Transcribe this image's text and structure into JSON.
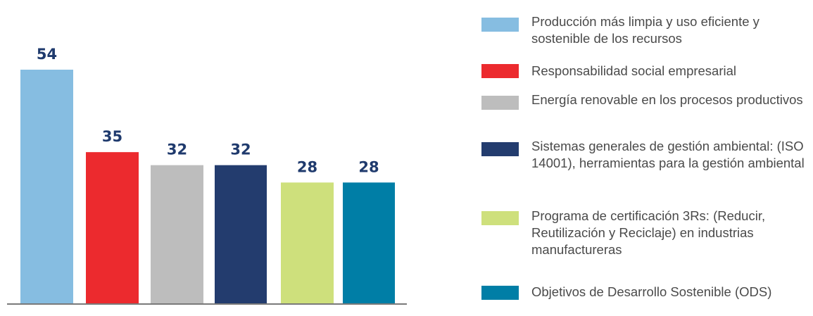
{
  "chart_data": {
    "type": "bar",
    "categories": [
      "Producción más limpia y uso eficiente y sostenible de los recursos",
      "Responsabilidad social empresarial",
      "Energía renovable en los procesos productivos",
      "Sistemas generales de gestión ambiental: (ISO 14001), herramientas para la gestión ambiental",
      "Programa de certificación 3Rs: (Reducir, Reutilización y Reciclaje) en industrias manufactureras",
      "Objetivos de Desarrollo Sostenible (ODS)"
    ],
    "values": [
      54,
      35,
      32,
      32,
      28,
      28
    ],
    "colors": [
      "#86bde1",
      "#ec2a2e",
      "#bdbdbd",
      "#233c6e",
      "#cee07c",
      "#007ea6"
    ],
    "value_labels": [
      "54",
      "35",
      "32",
      "32",
      "28",
      "28"
    ],
    "ylim": [
      0,
      60
    ],
    "grid": false,
    "legend_position": "right"
  },
  "legend": {
    "items": [
      {
        "label": "Producción más limpia y uso eficiente y sostenible de los recursos",
        "color": "#86bde1"
      },
      {
        "label": "Responsabilidad social empresarial",
        "color": "#ec2a2e"
      },
      {
        "label": "Energía renovable en los procesos productivos",
        "color": "#bdbdbd"
      },
      {
        "label": "Sistemas generales de gestión ambiental: (ISO 14001), herramientas para la gestión ambiental",
        "color": "#233c6e"
      },
      {
        "label": "Programa de certificación 3Rs: (Reducir, Reutilización y Reciclaje) en industrias manufactureras",
        "color": "#cee07c"
      },
      {
        "label": "Objetivos de Desarrollo Sostenible (ODS)",
        "color": "#007ea6"
      }
    ]
  }
}
